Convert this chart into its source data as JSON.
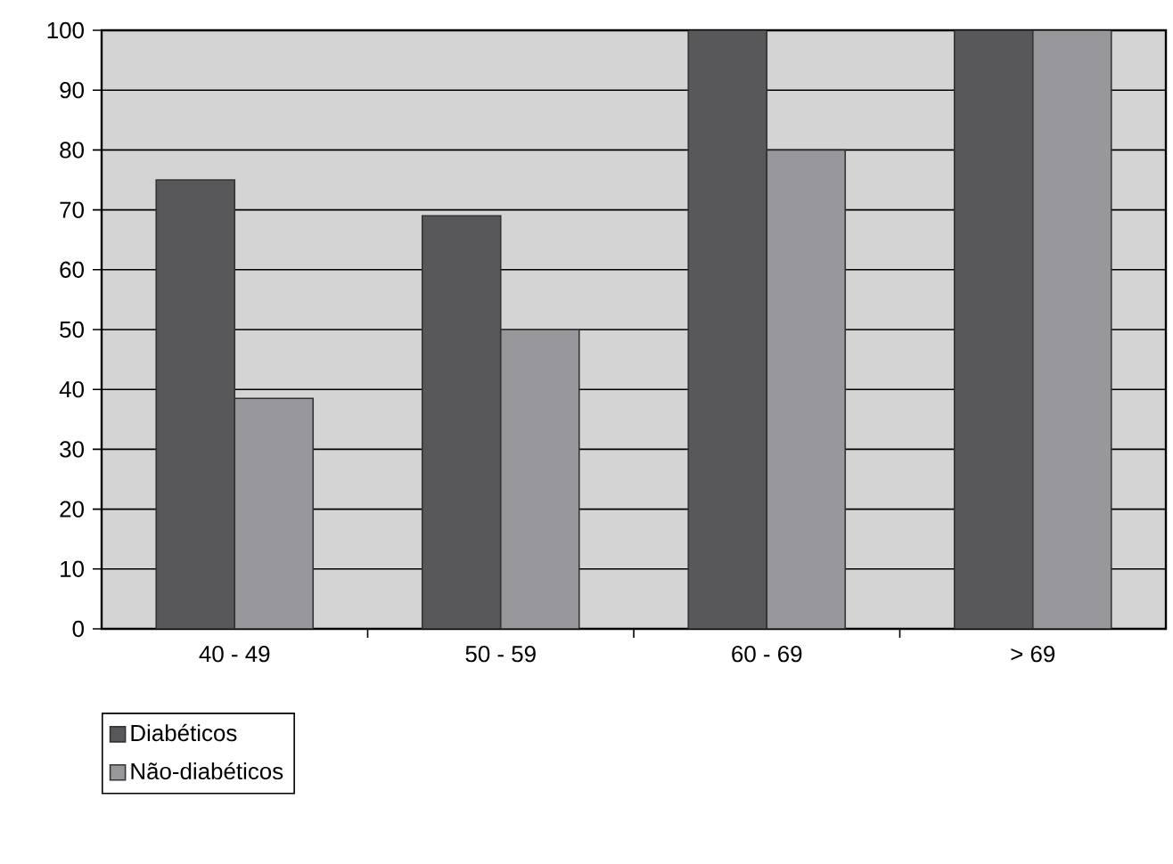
{
  "chart_data": {
    "type": "bar",
    "categories": [
      "40 - 49",
      "50 - 59",
      "60 - 69",
      "> 69"
    ],
    "series": [
      {
        "name": "Diabéticos",
        "color": "#58585a",
        "values": [
          75,
          69,
          100,
          100
        ]
      },
      {
        "name": "Não-diabéticos",
        "color": "#98979b",
        "values": [
          38.5,
          50,
          80,
          100
        ]
      }
    ],
    "ylim": [
      0,
      100
    ],
    "yticks": [
      0,
      10,
      20,
      30,
      40,
      50,
      60,
      70,
      80,
      90,
      100
    ],
    "grid": "y",
    "legend": "bottom left"
  }
}
